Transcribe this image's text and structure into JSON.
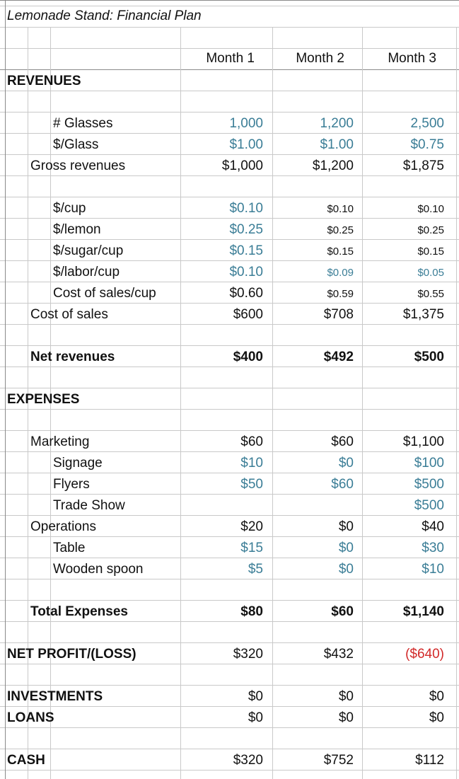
{
  "title": "Lemonade Stand: Financial Plan",
  "headers": [
    "Month 1",
    "Month 2",
    "Month 3"
  ],
  "colors": {
    "input": "#3a7d96",
    "negative": "#d22a2a",
    "default": "#111111",
    "grid": "#c9c9c9"
  },
  "rows": [
    {
      "id": "revenues",
      "label": "REVENUES",
      "indent": 0,
      "bold": true,
      "values": []
    },
    {
      "id": "glasses",
      "label": "# Glasses",
      "indent": 2,
      "values": [
        {
          "v": "1,000",
          "c": "input"
        },
        {
          "v": "1,200",
          "c": "input"
        },
        {
          "v": "2,500",
          "c": "input"
        }
      ]
    },
    {
      "id": "price-per-glass",
      "label": "$/Glass",
      "indent": 2,
      "values": [
        {
          "v": "$1.00",
          "c": "input"
        },
        {
          "v": "$1.00",
          "c": "input"
        },
        {
          "v": "$0.75",
          "c": "input"
        }
      ]
    },
    {
      "id": "gross-revenues",
      "label": "Gross revenues",
      "indent": 1,
      "values": [
        {
          "v": "$1,000"
        },
        {
          "v": "$1,200"
        },
        {
          "v": "$1,875"
        }
      ]
    },
    {
      "id": "cup",
      "label": "$/cup",
      "indent": 2,
      "values": [
        {
          "v": "$0.10",
          "c": "input"
        },
        {
          "v": "$0.10",
          "s": true
        },
        {
          "v": "$0.10",
          "s": true
        }
      ]
    },
    {
      "id": "lemon",
      "label": "$/lemon",
      "indent": 2,
      "values": [
        {
          "v": "$0.25",
          "c": "input"
        },
        {
          "v": "$0.25",
          "s": true
        },
        {
          "v": "$0.25",
          "s": true
        }
      ]
    },
    {
      "id": "sugar",
      "label": "$/sugar/cup",
      "indent": 2,
      "values": [
        {
          "v": "$0.15",
          "c": "input"
        },
        {
          "v": "$0.15",
          "s": true
        },
        {
          "v": "$0.15",
          "s": true
        }
      ]
    },
    {
      "id": "labor",
      "label": "$/labor/cup",
      "indent": 2,
      "values": [
        {
          "v": "$0.10",
          "c": "input"
        },
        {
          "v": "$0.09",
          "c": "input",
          "s": true
        },
        {
          "v": "$0.05",
          "c": "input",
          "s": true
        }
      ]
    },
    {
      "id": "cost-of-sales-cup",
      "label": "Cost of sales/cup",
      "indent": 2,
      "values": [
        {
          "v": "$0.60"
        },
        {
          "v": "$0.59",
          "s": true
        },
        {
          "v": "$0.55",
          "s": true
        }
      ]
    },
    {
      "id": "cost-of-sales",
      "label": "Cost of sales",
      "indent": 1,
      "values": [
        {
          "v": "$600"
        },
        {
          "v": "$708"
        },
        {
          "v": "$1,375"
        }
      ]
    },
    {
      "id": "net-revenues",
      "label": "Net revenues",
      "indent": 1,
      "bold": true,
      "values": [
        {
          "v": "$400"
        },
        {
          "v": "$492"
        },
        {
          "v": "$500"
        }
      ]
    },
    {
      "id": "expenses",
      "label": "EXPENSES",
      "indent": 0,
      "bold": true,
      "values": []
    },
    {
      "id": "marketing",
      "label": "Marketing",
      "indent": 1,
      "values": [
        {
          "v": "$60"
        },
        {
          "v": "$60"
        },
        {
          "v": "$1,100"
        }
      ]
    },
    {
      "id": "signage",
      "label": "Signage",
      "indent": 2,
      "values": [
        {
          "v": "$10",
          "c": "input"
        },
        {
          "v": "$0",
          "c": "input"
        },
        {
          "v": "$100",
          "c": "input"
        }
      ]
    },
    {
      "id": "flyers",
      "label": "Flyers",
      "indent": 2,
      "values": [
        {
          "v": "$50",
          "c": "input"
        },
        {
          "v": "$60",
          "c": "input"
        },
        {
          "v": "$500",
          "c": "input"
        }
      ]
    },
    {
      "id": "trade-show",
      "label": "Trade Show",
      "indent": 2,
      "values": [
        {
          "v": ""
        },
        {
          "v": ""
        },
        {
          "v": "$500",
          "c": "input"
        }
      ]
    },
    {
      "id": "operations",
      "label": "Operations",
      "indent": 1,
      "values": [
        {
          "v": "$20"
        },
        {
          "v": "$0"
        },
        {
          "v": "$40"
        }
      ]
    },
    {
      "id": "table",
      "label": "Table",
      "indent": 2,
      "values": [
        {
          "v": "$15",
          "c": "input"
        },
        {
          "v": "$0",
          "c": "input"
        },
        {
          "v": "$30",
          "c": "input"
        }
      ]
    },
    {
      "id": "wooden-spoon",
      "label": "Wooden spoon",
      "indent": 2,
      "values": [
        {
          "v": "$5",
          "c": "input"
        },
        {
          "v": "$0",
          "c": "input"
        },
        {
          "v": "$10",
          "c": "input"
        }
      ]
    },
    {
      "id": "total-expenses",
      "label": "Total Expenses",
      "indent": 1,
      "bold": true,
      "values": [
        {
          "v": "$80"
        },
        {
          "v": "$60"
        },
        {
          "v": "$1,140"
        }
      ]
    },
    {
      "id": "net-profit",
      "label": "NET PROFIT/(LOSS)",
      "indent": 0,
      "bold": true,
      "valueBold": false,
      "values": [
        {
          "v": "$320"
        },
        {
          "v": "$432"
        },
        {
          "v": "($640)",
          "c": "negative"
        }
      ]
    },
    {
      "id": "investments",
      "label": "INVESTMENTS",
      "indent": 0,
      "bold": true,
      "valueBold": false,
      "values": [
        {
          "v": "$0"
        },
        {
          "v": "$0"
        },
        {
          "v": "$0"
        }
      ]
    },
    {
      "id": "loans",
      "label": "LOANS",
      "indent": 0,
      "bold": true,
      "valueBold": false,
      "values": [
        {
          "v": "$0"
        },
        {
          "v": "$0"
        },
        {
          "v": "$0"
        }
      ]
    },
    {
      "id": "cash",
      "label": "CASH",
      "indent": 0,
      "bold": true,
      "valueBold": false,
      "values": [
        {
          "v": "$320"
        },
        {
          "v": "$752"
        },
        {
          "v": "$112"
        }
      ]
    }
  ]
}
